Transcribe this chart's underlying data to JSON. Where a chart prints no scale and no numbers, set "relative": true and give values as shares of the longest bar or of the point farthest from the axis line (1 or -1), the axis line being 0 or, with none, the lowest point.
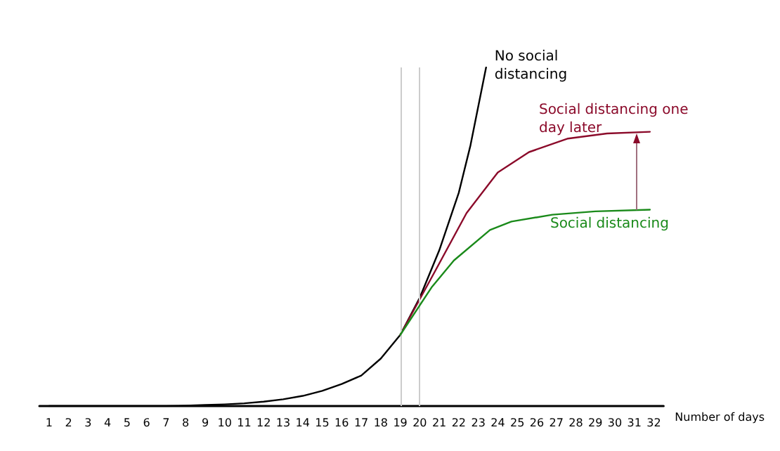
{
  "chart_data": {
    "type": "line",
    "relative": true,
    "xlabel": "Number of days",
    "xlim": [
      0.5,
      32.5
    ],
    "xticks": [
      1,
      2,
      3,
      4,
      5,
      6,
      7,
      8,
      9,
      10,
      11,
      12,
      13,
      14,
      15,
      16,
      17,
      18,
      19,
      20,
      21,
      22,
      23,
      24,
      25,
      26,
      27,
      28,
      29,
      30,
      31,
      32
    ],
    "grid": false,
    "legend": false,
    "marker": "none",
    "line_style": "solid",
    "series": [
      {
        "name": "No social distancing",
        "color": "#000000",
        "x": [
          1,
          2,
          3,
          4,
          5,
          6,
          7,
          8,
          9,
          10,
          11,
          12,
          13,
          14,
          15,
          16,
          17,
          18,
          19,
          20,
          21,
          22,
          22.6,
          23.4
        ],
        "values": [
          0,
          0,
          0,
          0,
          0,
          0,
          0,
          0.001,
          0.003,
          0.005,
          0.008,
          0.013,
          0.02,
          0.03,
          0.045,
          0.065,
          0.09,
          0.14,
          0.21,
          0.32,
          0.46,
          0.63,
          0.77,
          1
        ]
      },
      {
        "name": "Social distancing one day later",
        "color": "#8b0a2a",
        "x": [
          19,
          20.8,
          22.4,
          24,
          25.6,
          27.6,
          29.6,
          31.8
        ],
        "values": [
          0.21,
          0.4,
          0.57,
          0.69,
          0.75,
          0.79,
          0.805,
          0.81
        ]
      },
      {
        "name": "Social distancing",
        "color": "#1a8a1a",
        "x": [
          19,
          20.6,
          21.75,
          23.6,
          24.7,
          26.8,
          29,
          31.8
        ],
        "values": [
          0.21,
          0.35,
          0.43,
          0.52,
          0.545,
          0.565,
          0.575,
          0.58
        ]
      }
    ],
    "ref_lines": [
      {
        "axis": "x",
        "value": 19,
        "color": "#cccccc"
      },
      {
        "axis": "x",
        "value": 20,
        "color": "#cccccc"
      }
    ]
  }
}
